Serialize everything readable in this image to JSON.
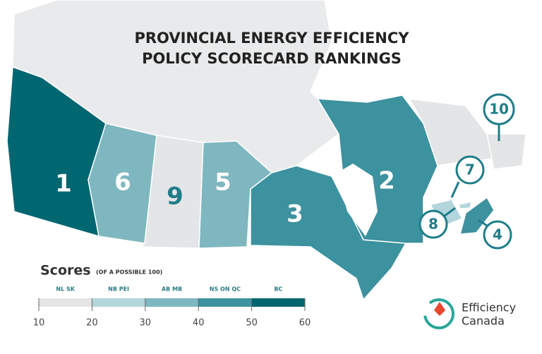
{
  "title": [
    "PROVINCIAL ENERGY EFFICIENCY",
    "POLICY SCORECARD RANKINGS"
  ],
  "rankings": [
    1,
    6,
    9,
    5,
    3,
    2,
    7,
    8,
    4,
    10
  ],
  "legend": {
    "title": "Scores",
    "subtitle": "(OF A POSSIBLE 100)",
    "classes": [
      "NL SK",
      "NB PEI",
      "AB MB",
      "NS ON QC",
      "BC"
    ],
    "colors": [
      "#e4e5e6",
      "#b2d6dc",
      "#7fb7c0",
      "#3c929e",
      "#006670"
    ],
    "ticks": [
      10,
      20,
      30,
      40,
      50,
      60
    ]
  },
  "logo": [
    "Efficiency",
    "Canada"
  ]
}
